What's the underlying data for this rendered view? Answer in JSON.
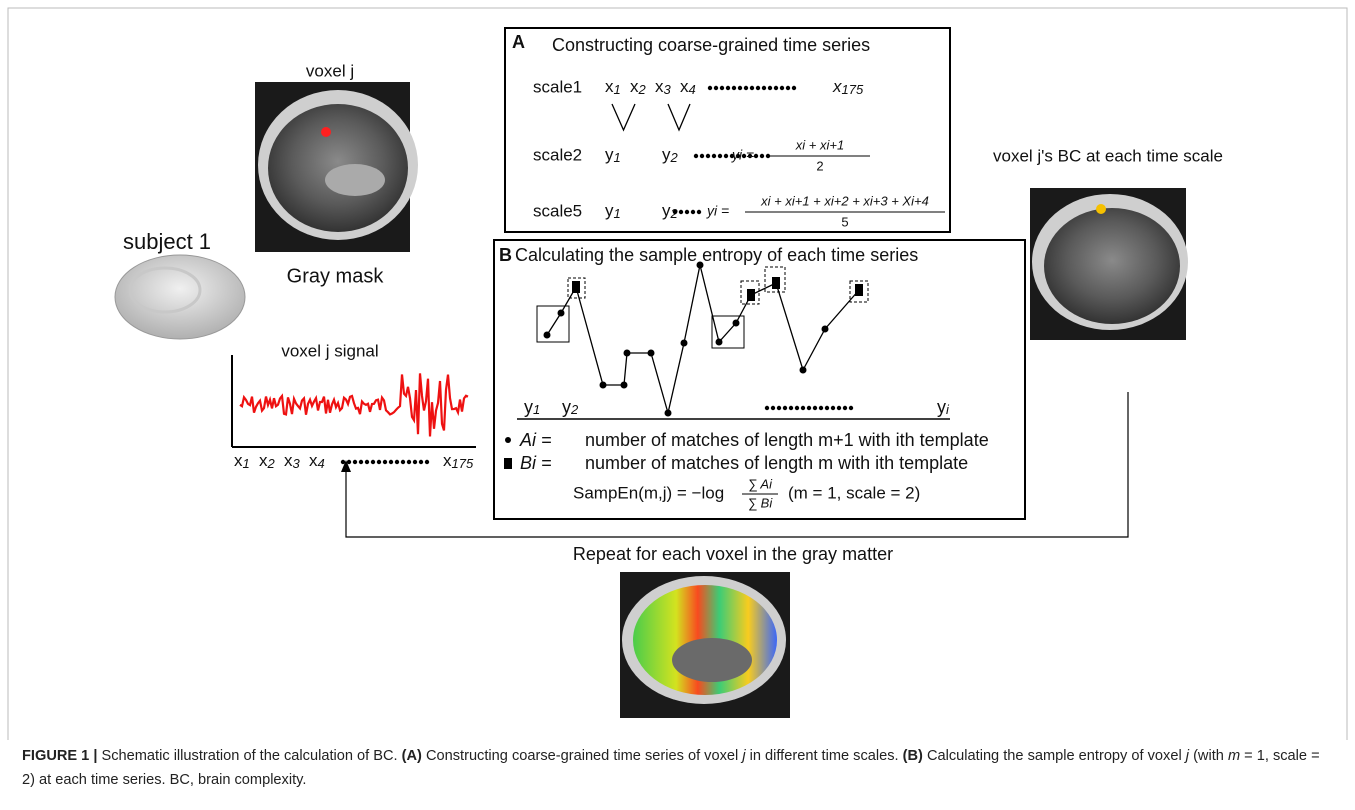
{
  "panel_a": {
    "label": "A",
    "title": "Constructing coarse-grained time series",
    "rows": [
      {
        "scale": "scale1",
        "terms": [
          "x1",
          "x2",
          "x3",
          "x4"
        ],
        "last": "x175"
      },
      {
        "scale": "scale2",
        "terms": [
          "y1",
          "y2"
        ],
        "lhs": "yi =",
        "numerator": "xi + xi+1",
        "denominator": "2"
      },
      {
        "scale": "scale5",
        "terms": [
          "y1",
          "y2"
        ],
        "lhs": "yi =",
        "numerator": "xi + xi+1 + xi+2 + xi+3 + Xi+4",
        "denominator": "5"
      }
    ]
  },
  "panel_b": {
    "label": "B",
    "title": "Calculating the sample entropy of each time series",
    "axis_labels": [
      "y1",
      "y2",
      "yi"
    ],
    "legend": [
      {
        "symbol": "Ai =",
        "text": "number of matches of length m+1 with ith template"
      },
      {
        "symbol": "Bi =",
        "text": "number of matches of length m with ith template"
      }
    ],
    "formula": {
      "lhs": "SampEn(m,j) = −log",
      "numerator": "∑ Ai",
      "denominator": "∑ Bi",
      "note": "(m = 1, scale = 2)"
    }
  },
  "labels": {
    "voxel": "voxel j",
    "mask": "Gray mask",
    "subject": "subject 1",
    "signal": "voxel j signal",
    "signal_ticks": [
      "x1",
      "x2",
      "x3",
      "x4"
    ],
    "signal_last": "x175",
    "bc": "voxel j's BC at each time scale",
    "repeat": "Repeat for each voxel in the gray matter"
  },
  "caption": {
    "segments": [
      "FIGURE 1 |",
      " Schematic illustration of the calculation of BC. ",
      "(A)",
      " Constructing coarse-grained time series of voxel ",
      "j",
      " in different time scales. ",
      "(B)",
      " Calculating the sample entropy of voxel ",
      "j",
      " (with ",
      "m",
      " = 1, scale = 2) at each time series. BC, brain complexity."
    ]
  }
}
